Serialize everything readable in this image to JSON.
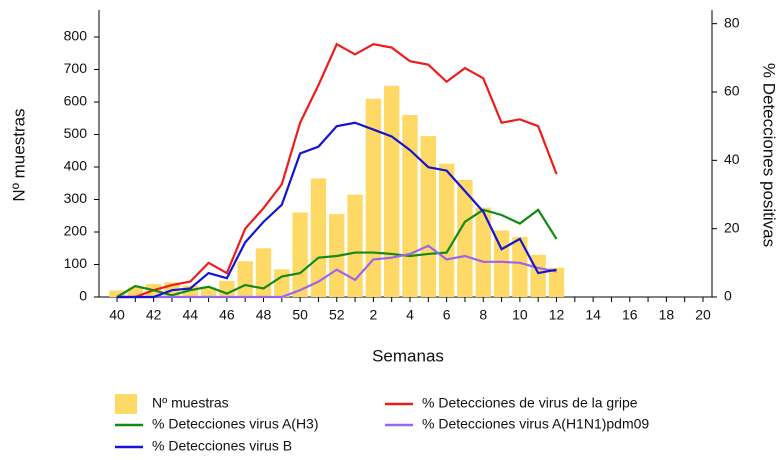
{
  "chart_data": {
    "type": "bar-line",
    "x_label": "Semanas",
    "y_label": "Nº muestras",
    "y2_label": "% Detecciones positivas",
    "categories": [
      40,
      null,
      42,
      null,
      44,
      null,
      46,
      null,
      48,
      null,
      50,
      null,
      52,
      null,
      2,
      null,
      4,
      null,
      6,
      null,
      8,
      null,
      10,
      null,
      12,
      null,
      14,
      null,
      16,
      null,
      18,
      null,
      20
    ],
    "ylim": [
      0,
      883
    ],
    "yticks": [
      0,
      100,
      200,
      300,
      400,
      500,
      600,
      700,
      800
    ],
    "y2lim": [
      0,
      84
    ],
    "y2ticks": [
      0,
      20,
      40,
      60,
      80
    ],
    "series": [
      {
        "name": "Nº muestras",
        "kind": "bar",
        "axis": "y",
        "color": "#ffd966",
        "values": [
          20,
          30,
          40,
          45,
          35,
          30,
          50,
          110,
          150,
          85,
          260,
          365,
          255,
          315,
          610,
          650,
          560,
          495,
          410,
          360,
          275,
          205,
          185,
          130,
          90,
          null,
          null,
          null,
          null,
          null,
          null,
          null,
          null
        ]
      },
      {
        "name": "% Detecciones de virus de la gripe",
        "kind": "line",
        "axis": "y2",
        "color": "#ee1c1c",
        "values": [
          0,
          0,
          2,
          3.5,
          4.5,
          10,
          7,
          20,
          26,
          33,
          51,
          62,
          74,
          71,
          74,
          73,
          69,
          68,
          63,
          67,
          64,
          51,
          52,
          50,
          36,
          null,
          null,
          null,
          null,
          null,
          null,
          null,
          null
        ]
      },
      {
        "name": "% Detecciones virus A(H3)",
        "kind": "line",
        "axis": "y2",
        "color": "#138a13",
        "values": [
          0,
          3.2,
          2,
          0.5,
          2,
          3,
          1,
          3.5,
          2.5,
          6,
          7,
          11.5,
          12,
          13,
          13,
          12.6,
          12,
          12.6,
          13,
          22,
          25.5,
          24,
          21.5,
          25.5,
          17,
          null,
          null,
          null,
          null,
          null,
          null,
          null,
          null
        ]
      },
      {
        "name": "% Detecciones virus A(H1N1)pdm09",
        "kind": "line",
        "axis": "y2",
        "color": "#9966ee",
        "values": [
          0,
          0,
          0,
          0,
          0,
          0,
          0,
          0,
          0,
          0,
          2,
          4.5,
          8,
          5,
          11,
          11.5,
          12.6,
          15,
          11,
          12,
          10.3,
          10.3,
          10,
          8.5,
          7.5,
          null,
          null,
          null,
          null,
          null,
          null,
          null,
          null
        ]
      },
      {
        "name": "% Detecciones virus B",
        "kind": "line",
        "axis": "y2",
        "color": "#1414d4",
        "values": [
          0,
          0,
          0,
          2,
          2.5,
          7,
          5.5,
          16,
          22,
          27,
          42,
          44,
          50,
          51,
          49,
          47,
          43,
          38,
          37,
          31,
          25,
          14,
          17,
          7,
          8,
          null,
          null,
          null,
          null,
          null,
          null,
          null,
          null
        ]
      }
    ]
  }
}
